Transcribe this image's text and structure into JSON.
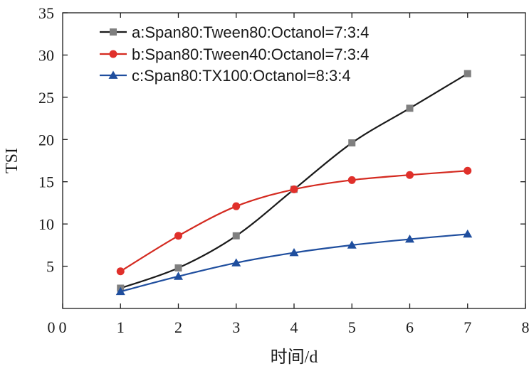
{
  "chart_data": {
    "type": "line",
    "title": "",
    "xlabel": "时间/d",
    "ylabel": "TSI",
    "xlim": [
      0,
      8
    ],
    "ylim": [
      0,
      35
    ],
    "xticks": [
      0,
      1,
      2,
      3,
      4,
      5,
      6,
      7,
      8
    ],
    "yticks": [
      5,
      10,
      15,
      20,
      25,
      30,
      35
    ],
    "legend_position": "top-left",
    "grid": false,
    "series": [
      {
        "name": "a:Span80:Tween80:Octanol=7:3:4",
        "color": "#7f7f7f",
        "line_color": "#1a1a1a",
        "marker": "square",
        "x": [
          1,
          2,
          3,
          4,
          5,
          6,
          7
        ],
        "y": [
          2.4,
          4.8,
          8.6,
          14.1,
          19.6,
          23.7,
          27.8
        ]
      },
      {
        "name": "b:Span80:Tween40:Octanol=7:3:4",
        "color": "#e0302b",
        "line_color": "#d42a20",
        "marker": "circle",
        "x": [
          1,
          2,
          3,
          4,
          5,
          6,
          7
        ],
        "y": [
          4.4,
          8.6,
          12.1,
          14.1,
          15.2,
          15.8,
          16.3
        ]
      },
      {
        "name": "c:Span80:TX100:Octanol=8:3:4",
        "color": "#1f4e9e",
        "line_color": "#1f4e9e",
        "marker": "triangle",
        "x": [
          1,
          2,
          3,
          4,
          5,
          6,
          7
        ],
        "y": [
          2.0,
          3.8,
          5.4,
          6.6,
          7.5,
          8.2,
          8.8
        ]
      }
    ]
  }
}
